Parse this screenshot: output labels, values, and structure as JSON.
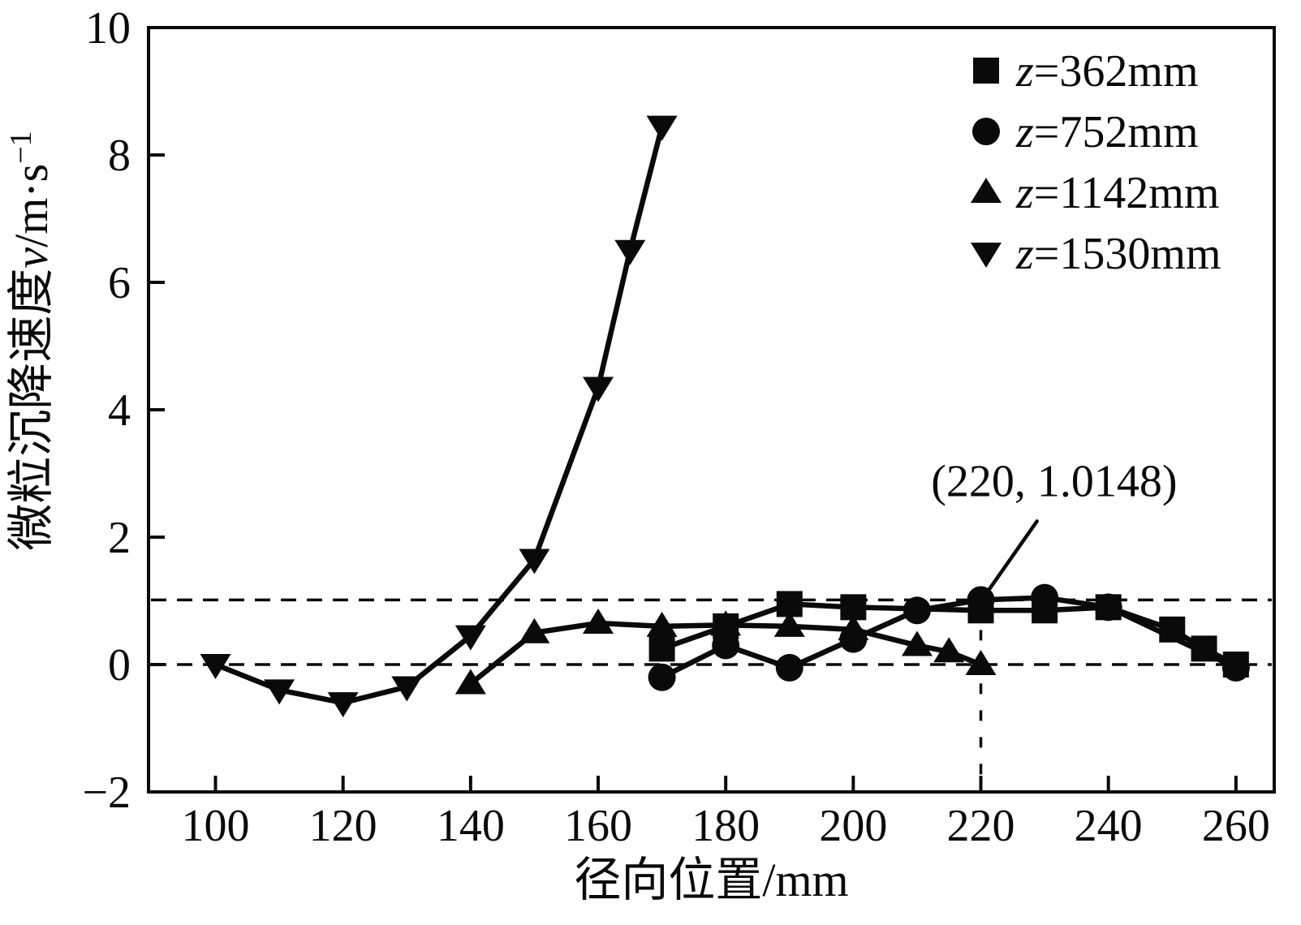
{
  "page": {
    "background": "#ffffff",
    "ink_color": "#0a0a0a"
  },
  "chart_data": {
    "type": "line",
    "title": "",
    "xlabel": "径向位置/mm",
    "ylabel": {
      "prefix": "微粒沉降速度",
      "variable": "v",
      "unit": "/m·s",
      "superscript": "−1"
    },
    "xlim": [
      89.5,
      266
    ],
    "ylim": [
      -2,
      10
    ],
    "x_ticks": {
      "values": [
        100,
        120,
        140,
        160,
        180,
        200,
        220,
        240,
        260
      ],
      "labels": [
        "100",
        "120",
        "140",
        "160",
        "180",
        "200",
        "220",
        "240",
        "260"
      ]
    },
    "y_ticks": {
      "values": [
        -2,
        0,
        2,
        4,
        6,
        8,
        10
      ],
      "labels": [
        "−2",
        "0",
        "2",
        "4",
        "6",
        "8",
        "10"
      ]
    },
    "grid": false,
    "legend_position": "top-right-inside",
    "series": [
      {
        "name": "z=362mm",
        "legend_var": "z",
        "legend_rest": "=362mm",
        "marker": "square",
        "points": [
          [
            170,
            0.25
          ],
          [
            180,
            0.6
          ],
          [
            190,
            0.95
          ],
          [
            200,
            0.9
          ],
          [
            220,
            0.85
          ],
          [
            230,
            0.85
          ],
          [
            240,
            0.9
          ],
          [
            250,
            0.55
          ],
          [
            255,
            0.25
          ],
          [
            260,
            0
          ]
        ]
      },
      {
        "name": "z=752mm",
        "legend_var": "z",
        "legend_rest": "=752mm",
        "marker": "circle",
        "points": [
          [
            170,
            -0.2
          ],
          [
            180,
            0.3
          ],
          [
            190,
            -0.05
          ],
          [
            200,
            0.4
          ],
          [
            210,
            0.85
          ],
          [
            220,
            1.0148
          ],
          [
            230,
            1.05
          ],
          [
            240,
            0.9
          ],
          [
            260,
            -0.05
          ]
        ]
      },
      {
        "name": "z=1142mm",
        "legend_var": "z",
        "legend_rest": "=1142mm",
        "marker": "triangle-up",
        "points": [
          [
            140,
            -0.3
          ],
          [
            150,
            0.5
          ],
          [
            160,
            0.65
          ],
          [
            170,
            0.6
          ],
          [
            180,
            0.62
          ],
          [
            190,
            0.6
          ],
          [
            200,
            0.55
          ],
          [
            210,
            0.3
          ],
          [
            215,
            0.2
          ],
          [
            220,
            0
          ]
        ]
      },
      {
        "name": "z=1530mm",
        "legend_var": "z",
        "legend_rest": "=1530mm",
        "marker": "triangle-down",
        "points": [
          [
            100,
            0
          ],
          [
            110,
            -0.4
          ],
          [
            120,
            -0.6
          ],
          [
            130,
            -0.35
          ],
          [
            140,
            0.45
          ],
          [
            150,
            1.65
          ],
          [
            160,
            4.35
          ],
          [
            165,
            6.5
          ],
          [
            170,
            8.45
          ]
        ]
      }
    ],
    "reference_lines": [
      {
        "orientation": "horizontal",
        "y": 0,
        "style": "dashed"
      },
      {
        "orientation": "horizontal",
        "y": 1.0148,
        "style": "dashed"
      },
      {
        "orientation": "vertical",
        "x": 220,
        "y_from": 1.0148,
        "y_to": -2,
        "style": "dashed"
      }
    ],
    "annotation": {
      "text": "(220, 1.0148)",
      "target": [
        220,
        1.0148
      ],
      "text_pos": [
        231.5,
        2.9
      ],
      "leader_from": [
        228.8,
        2.25
      ],
      "leader_to": [
        220.4,
        1.05
      ]
    }
  }
}
